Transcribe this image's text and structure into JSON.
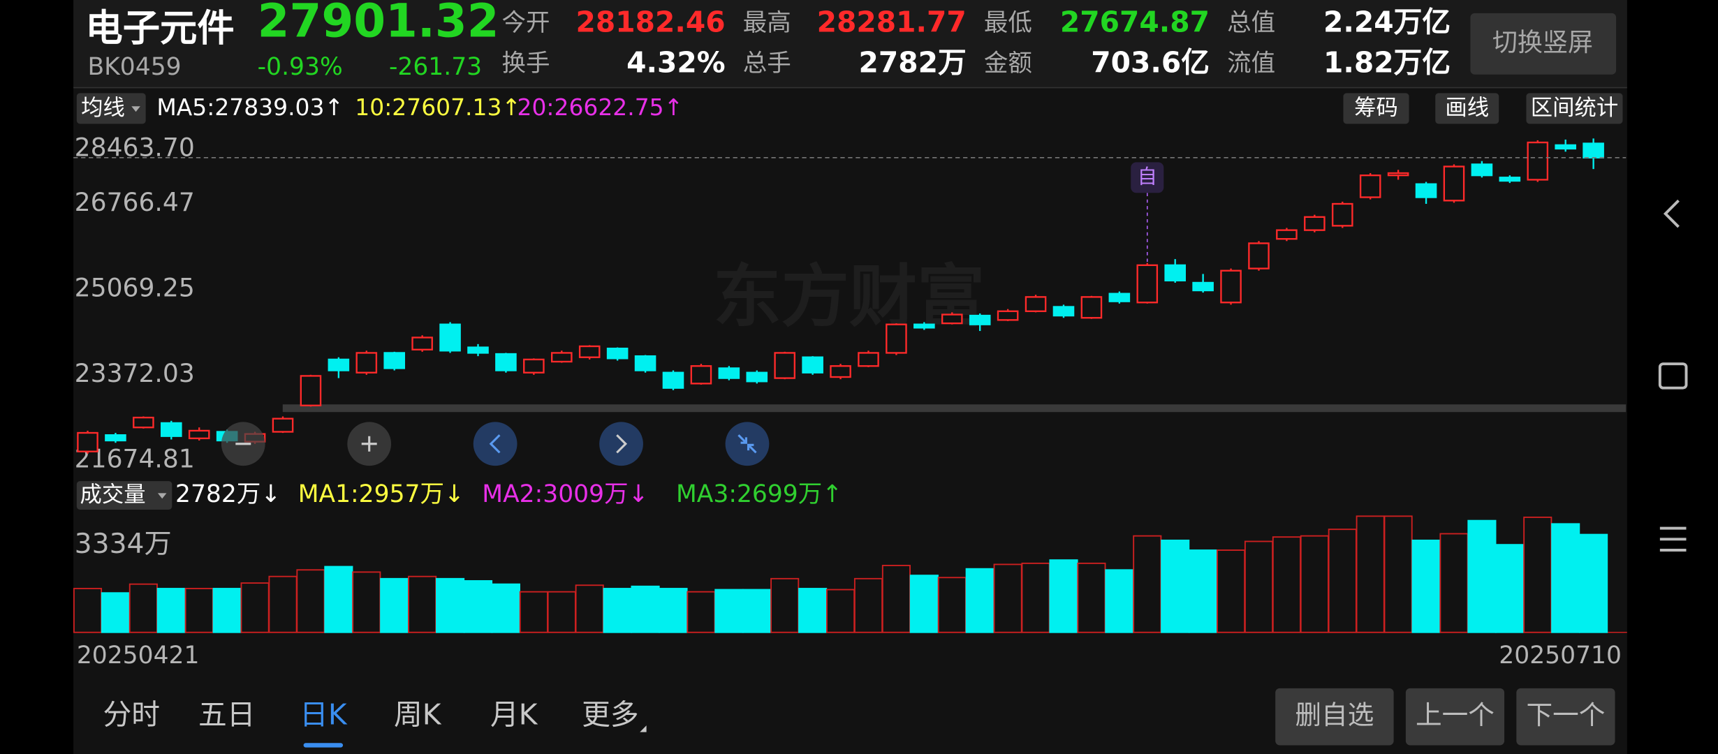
{
  "header": {
    "name": "电子元件",
    "code": "BK0459",
    "price": "27901.32",
    "change_pct": "-0.93%",
    "change": "-261.73",
    "stats": [
      [
        {
          "label": "今开",
          "value": "28182.46"
        },
        {
          "label": "最高",
          "value": "28281.77"
        },
        {
          "label": "最低",
          "value": "27674.87"
        },
        {
          "label": "总值",
          "value": "2.24万亿"
        }
      ],
      [
        {
          "label": "换手",
          "value": "4.32%"
        },
        {
          "label": "总手",
          "value": "2782万"
        },
        {
          "label": "金额",
          "value": "703.6亿"
        },
        {
          "label": "流值",
          "value": "1.82万亿"
        }
      ]
    ],
    "switch_button": "切换竖屏"
  },
  "toolbar": {
    "selector": "均线",
    "ma": [
      "MA5:27839.03↑",
      "10:27607.13↑",
      "20:26622.75↑"
    ],
    "buttons": [
      "筹码",
      "画线",
      "区间统计"
    ]
  },
  "volume_toolbar": {
    "selector": "成交量",
    "ma": [
      "2782万↓",
      "MA1:2957万↓",
      "MA2:3009万↓",
      "MA3:2699万↑"
    ]
  },
  "watermark": "东方财富",
  "chart_data": [
    {
      "type": "candlestick",
      "annotation": "自",
      "categories": [
        "20250421",
        null,
        null,
        null,
        null,
        null,
        null,
        null,
        null,
        null,
        null,
        null,
        null,
        null,
        null,
        null,
        null,
        null,
        null,
        null,
        null,
        null,
        null,
        null,
        null,
        null,
        null,
        null,
        null,
        null,
        null,
        null,
        null,
        null,
        null,
        null,
        null,
        null,
        null,
        null,
        null,
        null,
        null,
        null,
        null,
        null,
        null,
        null,
        null,
        null,
        null,
        null,
        null,
        null,
        "20250710"
      ],
      "open": [
        22067,
        22393,
        22545,
        22632,
        22328,
        22458,
        22262,
        22458,
        22981,
        23894,
        23633,
        24025,
        24090,
        24590,
        24134,
        24003,
        23633,
        23851,
        23938,
        24112,
        23960,
        23633,
        23416,
        23720,
        23633,
        23524,
        23938,
        23546,
        23764,
        24025,
        24590,
        24612,
        24765,
        24678,
        24852,
        24939,
        24721,
        25200,
        25026,
        25766,
        25418,
        25026,
        25700,
        26288,
        26462,
        26549,
        27115,
        27550,
        27376,
        27049,
        27768,
        27507,
        27463,
        28150,
        28182.46
      ],
      "high": [
        22480,
        22437,
        22763,
        22676,
        22545,
        22502,
        22458,
        22763,
        23590,
        23938,
        24069,
        24047,
        24374,
        24635,
        24200,
        24025,
        23916,
        24069,
        24178,
        24134,
        23982,
        23677,
        23807,
        23764,
        23677,
        24047,
        23960,
        23807,
        24069,
        24612,
        24635,
        24830,
        24808,
        24895,
        25178,
        24982,
        25157,
        25244,
        25809,
        25887,
        25592,
        25700,
        26245,
        26506,
        26767,
        27027,
        27594,
        27659,
        27420,
        27768,
        27833,
        27550,
        28246,
        28260,
        28281.77
      ],
      "low": [
        22023,
        22240,
        22523,
        22306,
        22285,
        22240,
        22218,
        22436,
        22959,
        23524,
        23590,
        23677,
        24047,
        24025,
        23960,
        23633,
        23590,
        23829,
        23894,
        23872,
        23633,
        23285,
        23394,
        23481,
        23416,
        23502,
        23590,
        23502,
        23742,
        23982,
        24482,
        24590,
        24460,
        24656,
        24830,
        24721,
        24700,
        25004,
        25004,
        25418,
        25222,
        24982,
        25657,
        26245,
        26419,
        26506,
        27072,
        27463,
        26984,
        27006,
        27507,
        27398,
        27420,
        28020,
        27674.87
      ],
      "close": [
        22437,
        22285,
        22741,
        22372,
        22480,
        22285,
        22415,
        22719,
        23568,
        23677,
        24025,
        23720,
        24330,
        24069,
        24025,
        23677,
        23894,
        24025,
        24156,
        23916,
        23677,
        23329,
        23764,
        23524,
        23459,
        24025,
        23633,
        23764,
        24025,
        24590,
        24525,
        24786,
        24590,
        24852,
        25135,
        24765,
        25135,
        25048,
        25766,
        25461,
        25265,
        25657,
        26201,
        26462,
        26723,
        26984,
        27550,
        27594,
        27115,
        27725,
        27550,
        27441,
        28203,
        28080,
        27901.32
      ],
      "up_color": "#ff2a2a",
      "down_color": "#00f0f0",
      "ylim": [
        21674.81,
        28463.7
      ],
      "yticks": [
        21674.81,
        23372.03,
        25069.25,
        26766.47,
        {
          "value": 28463.7,
          "label": "28463.70"
        }
      ],
      "grid": false
    },
    {
      "type": "bar",
      "values": [
        1246,
        1122,
        1371,
        1246,
        1246,
        1246,
        1402,
        1589,
        1776,
        1870,
        1714,
        1527,
        1589,
        1527,
        1465,
        1371,
        1153,
        1153,
        1340,
        1246,
        1309,
        1246,
        1153,
        1215,
        1215,
        1527,
        1246,
        1215,
        1527,
        1901,
        1620,
        1558,
        1807,
        1932,
        1963,
        2057,
        1963,
        1776,
        2742,
        2617,
        2337,
        2337,
        2586,
        2711,
        2742,
        2929,
        3303,
        3303,
        2617,
        2804,
        3178,
        2493,
        3272,
        3085,
        2782
      ],
      "ylim": [
        0,
        3334
      ],
      "yticks": [
        {
          "value": 3334,
          "label": "3334万"
        }
      ]
    }
  ],
  "tabs": [
    "分时",
    "五日",
    "日K",
    "周K",
    "月K",
    "更多"
  ],
  "active_tab": 2,
  "buttons": [
    "删自选",
    "上一个",
    "下一个"
  ]
}
